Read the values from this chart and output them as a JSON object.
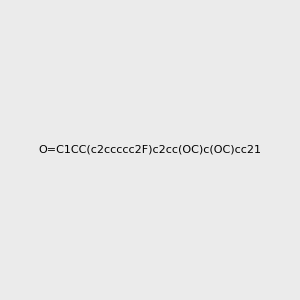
{
  "smiles": "O=C1CC(c2ccccc2F)c2cc(OC)c(OC)cc21",
  "background_color": "#ebebeb",
  "bond_color": "#2e8b7a",
  "atom_colors": {
    "O": "#cc0000",
    "N": "#0000cc",
    "F": "#cc00cc",
    "C": "#2e8b7a"
  },
  "figure_size": [
    3.0,
    3.0
  ],
  "dpi": 100
}
